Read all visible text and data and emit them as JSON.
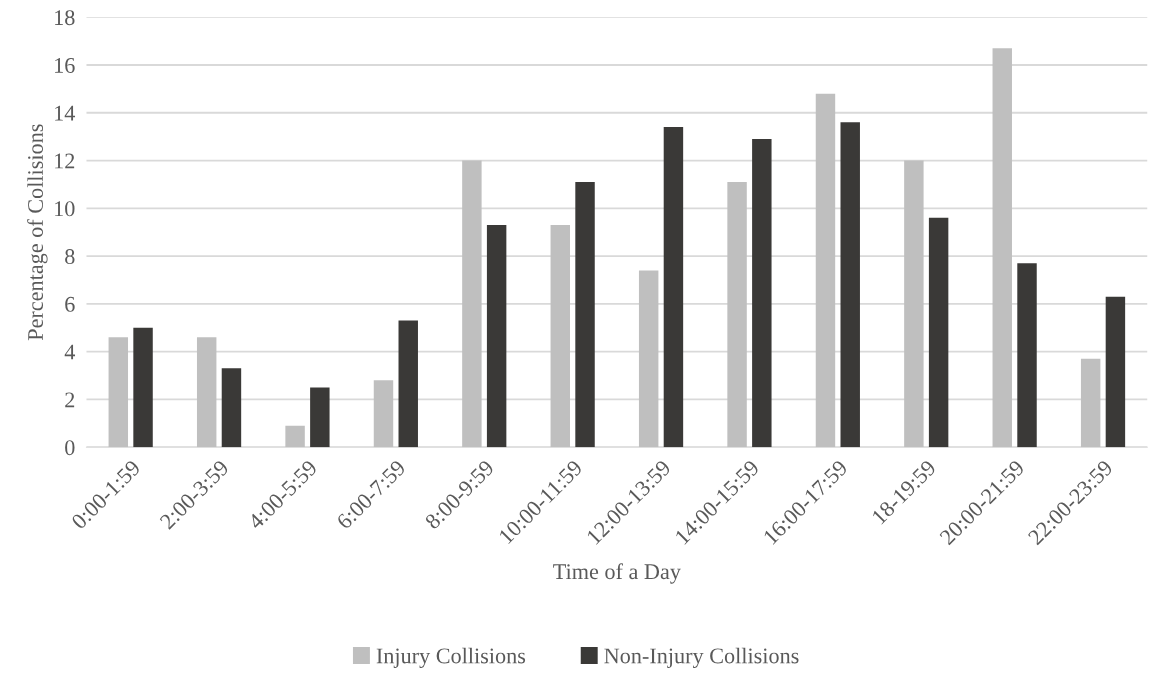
{
  "chart_data": {
    "type": "bar",
    "xlabel": "Time of a Day",
    "ylabel": "Percentage of Collisions",
    "categories": [
      "0:00-1:59",
      "2:00-3:59",
      "4:00-5:59",
      "6:00-7:59",
      "8:00-9:59",
      "10:00-11:59",
      "12:00-13:59",
      "14:00-15:59",
      "16:00-17:59",
      "18-19:59",
      "20:00-21:59",
      "22:00-23:59"
    ],
    "series": [
      {
        "name": "Injury Collisions",
        "color": "#bfbfbf",
        "values": [
          4.6,
          4.6,
          0.9,
          2.8,
          12.0,
          9.3,
          7.4,
          11.1,
          14.8,
          12.0,
          16.7,
          3.7
        ]
      },
      {
        "name": "Non-Injury Collisions",
        "color": "#3a3937",
        "values": [
          5.0,
          3.3,
          2.5,
          5.3,
          9.3,
          11.1,
          13.4,
          12.9,
          13.6,
          9.6,
          7.7,
          6.3
        ]
      }
    ],
    "ylim": [
      0,
      18
    ],
    "yticks": [
      0,
      2,
      4,
      6,
      8,
      10,
      12,
      14,
      16,
      18
    ],
    "grid": "y",
    "legend": "bottom"
  }
}
